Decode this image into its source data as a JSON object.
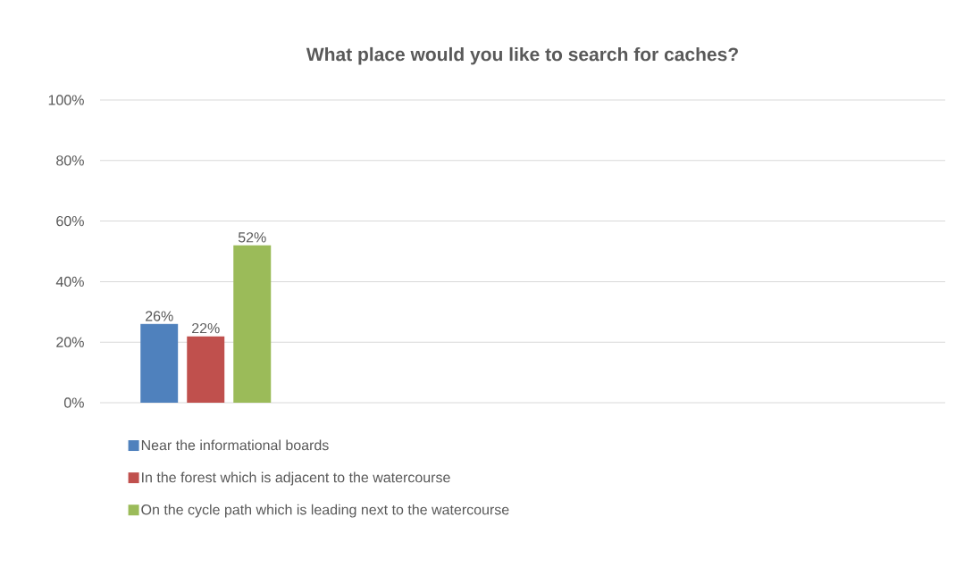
{
  "chart_data": {
    "type": "bar",
    "title": "What place would you like to search for caches?",
    "categories": [
      null,
      null,
      null,
      null
    ],
    "series": [
      {
        "name": "Near the informational boards",
        "color": "#4f81bd",
        "values": [
          26,
          null,
          null,
          null
        ],
        "value_labels": [
          "26%",
          null,
          null,
          null
        ]
      },
      {
        "name": "In the forest which is adjacent to the watercourse",
        "color": "#c0504d",
        "values": [
          22,
          null,
          null,
          null
        ],
        "value_labels": [
          "22%",
          null,
          null,
          null
        ]
      },
      {
        "name": "On the cycle path which is leading next to the watercourse",
        "color": "#9bbb59",
        "values": [
          52,
          null,
          null,
          null
        ],
        "value_labels": [
          "52%",
          null,
          null,
          null
        ]
      }
    ],
    "ylim": [
      0,
      100
    ],
    "yticks": [
      {
        "value": 0,
        "label": "0%"
      },
      {
        "value": 20,
        "label": "20%"
      },
      {
        "value": 40,
        "label": "40%"
      },
      {
        "value": 60,
        "label": "60%"
      },
      {
        "value": 80,
        "label": "80%"
      },
      {
        "value": 100,
        "label": "100%"
      }
    ],
    "grid": "y",
    "legend": "bottom"
  }
}
